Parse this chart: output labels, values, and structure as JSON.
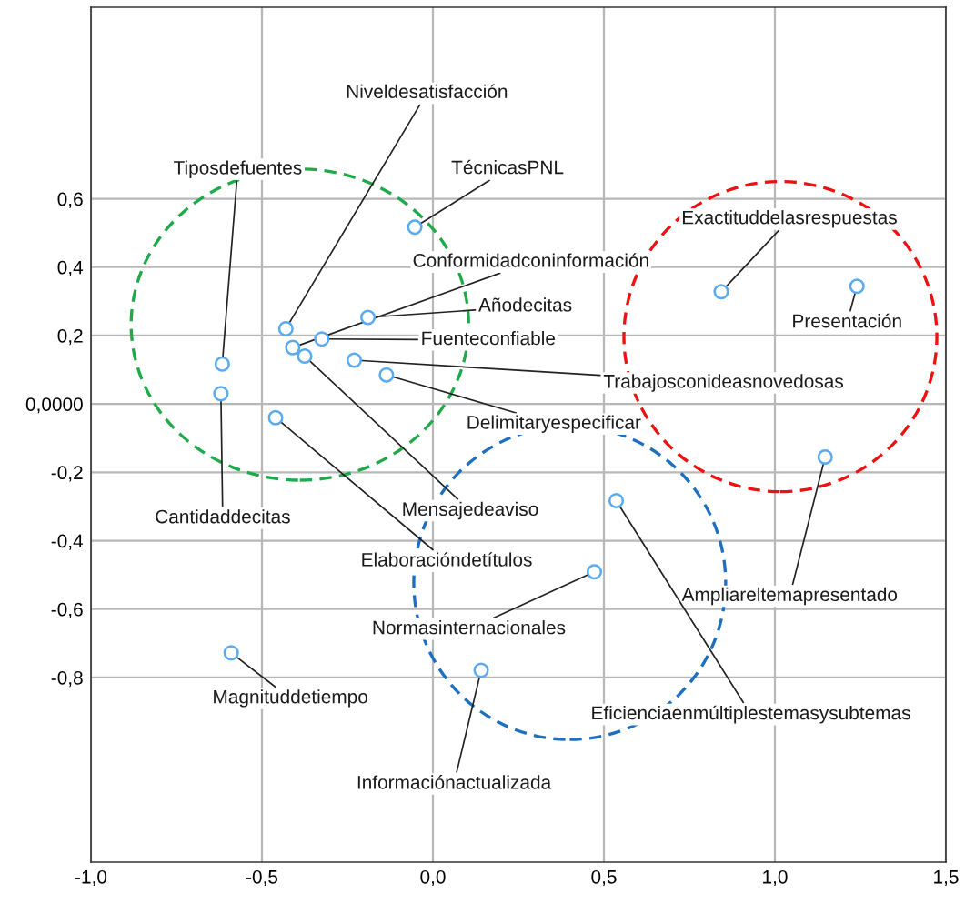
{
  "chart_data": {
    "type": "scatter",
    "marker": "circle",
    "grid": true,
    "xlim": [
      -1.0,
      1.5
    ],
    "ylim": [
      -1.34,
      1.16
    ],
    "xticks": [
      {
        "value": -1.0,
        "label": "-1,0"
      },
      {
        "value": -0.5,
        "label": "-0,5"
      },
      {
        "value": 0.0,
        "label": "0,0"
      },
      {
        "value": 0.5,
        "label": "0,5"
      },
      {
        "value": 1.0,
        "label": "1,0"
      },
      {
        "value": 1.5,
        "label": "1,5"
      }
    ],
    "yticks": [
      {
        "value": -0.8,
        "label": "-0,8"
      },
      {
        "value": -0.6,
        "label": "-0,6"
      },
      {
        "value": -0.4,
        "label": "-0,4"
      },
      {
        "value": -0.2,
        "label": "-0,2"
      },
      {
        "value": 0,
        "label": "0,0000"
      },
      {
        "value": 0.2,
        "label": "0,2"
      },
      {
        "value": 0.4,
        "label": "0,4"
      },
      {
        "value": 0.6,
        "label": "0,6"
      }
    ],
    "series": [
      {
        "color": "#5aaaf0",
        "x": [
          -0.616,
          -0.62,
          -0.43,
          -0.41,
          -0.375,
          -0.325,
          -0.053,
          -0.19,
          -0.23,
          -0.136,
          -0.46,
          -0.59,
          0.843,
          1.24,
          1.147,
          0.536,
          0.472,
          0.141
        ],
        "values": [
          0.117,
          0.03,
          0.22,
          0.165,
          0.14,
          0.19,
          0.517,
          0.253,
          0.128,
          0.085,
          -0.04,
          -0.728,
          0.328,
          0.344,
          -0.155,
          -0.283,
          -0.491,
          -0.779
        ]
      }
    ],
    "annotations": [
      {
        "text": "Tiposdefuentes",
        "x": -0.616,
        "y": 0.117
      },
      {
        "text": "Cantidaddecitas",
        "x": -0.62,
        "y": 0.03
      },
      {
        "text": "Niveldesatisfacción",
        "x": -0.43,
        "y": 0.22
      },
      {
        "text": "Conformidadconinformación",
        "x": -0.41,
        "y": 0.165
      },
      {
        "text": "Mensajedeaviso",
        "x": -0.375,
        "y": 0.14
      },
      {
        "text": "Fuenteconfiable",
        "x": -0.325,
        "y": 0.19
      },
      {
        "text": "TécnicasPNL",
        "x": -0.053,
        "y": 0.517
      },
      {
        "text": "Añodecitas",
        "x": -0.19,
        "y": 0.253
      },
      {
        "text": "Trabajosconideasnovedosas",
        "x": -0.23,
        "y": 0.128
      },
      {
        "text": "Delimitaryespecificar",
        "x": -0.136,
        "y": 0.085
      },
      {
        "text": "Elaboracióndetítulos",
        "x": -0.46,
        "y": -0.04
      },
      {
        "text": "Magnituddetiempo",
        "x": -0.59,
        "y": -0.728
      },
      {
        "text": "Exactituddelasrespuestas",
        "x": 0.843,
        "y": 0.328
      },
      {
        "text": "Presentación",
        "x": 1.24,
        "y": 0.344
      },
      {
        "text": "Ampliareltemapresentado",
        "x": 1.147,
        "y": -0.155
      },
      {
        "text": "Eficienciaenmúltiplestemasysubtemas",
        "x": 0.536,
        "y": -0.283
      },
      {
        "text": "Normasinternacionales",
        "x": 0.472,
        "y": -0.491
      },
      {
        "text": "Informaciónactualizada",
        "x": 0.141,
        "y": -0.779
      }
    ]
  }
}
